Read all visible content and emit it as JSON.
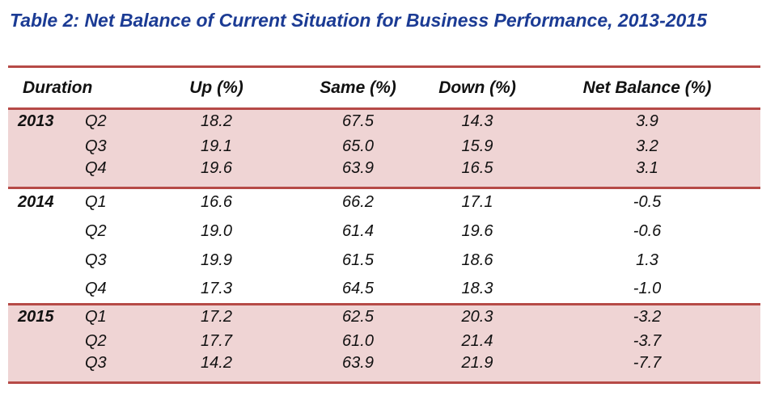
{
  "title": "Table 2: Net Balance of Current Situation for Business Performance, 2013-2015",
  "colors": {
    "title_text": "#1B3B94",
    "table_border": "#B64A47",
    "shaded_section_background": "#EFD4D4",
    "body_text": "#111111"
  },
  "table": {
    "columns": [
      "Duration",
      "Up (%)",
      "Same (%)",
      "Down (%)",
      "Net Balance (%)"
    ],
    "sections": [
      {
        "year": "2013",
        "shaded": true,
        "rows": [
          {
            "quarter": "Q2",
            "up": "18.2",
            "same": "67.5",
            "down": "14.3",
            "net": "3.9"
          },
          {
            "quarter": "Q3",
            "up": "19.1",
            "same": "65.0",
            "down": "15.9",
            "net": "3.2"
          },
          {
            "quarter": "Q4",
            "up": "19.6",
            "same": "63.9",
            "down": "16.5",
            "net": "3.1"
          }
        ]
      },
      {
        "year": "2014",
        "shaded": false,
        "rows": [
          {
            "quarter": "Q1",
            "up": "16.6",
            "same": "66.2",
            "down": "17.1",
            "net": "-0.5"
          },
          {
            "quarter": "Q2",
            "up": "19.0",
            "same": "61.4",
            "down": "19.6",
            "net": "-0.6"
          },
          {
            "quarter": "Q3",
            "up": "19.9",
            "same": "61.5",
            "down": "18.6",
            "net": "1.3"
          },
          {
            "quarter": "Q4",
            "up": "17.3",
            "same": "64.5",
            "down": "18.3",
            "net": "-1.0"
          }
        ]
      },
      {
        "year": "2015",
        "shaded": true,
        "rows": [
          {
            "quarter": "Q1",
            "up": "17.2",
            "same": "62.5",
            "down": "20.3",
            "net": "-3.2"
          },
          {
            "quarter": "Q2",
            "up": "17.7",
            "same": "61.0",
            "down": "21.4",
            "net": "-3.7"
          },
          {
            "quarter": "Q3",
            "up": "14.2",
            "same": "63.9",
            "down": "21.9",
            "net": "-7.7"
          }
        ]
      }
    ]
  }
}
